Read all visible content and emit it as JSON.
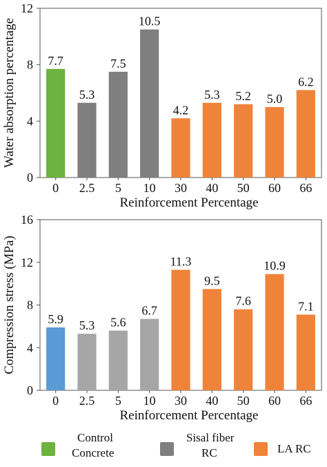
{
  "chart_data": [
    {
      "type": "bar",
      "ylabel": "Water absorption percentage",
      "xlabel": "Reinforcement Percentage",
      "categories": [
        "0",
        "2.5",
        "5",
        "10",
        "30",
        "40",
        "50",
        "60",
        "66"
      ],
      "values": [
        7.7,
        5.3,
        7.5,
        10.5,
        4.2,
        5.3,
        5.2,
        5.0,
        6.2
      ],
      "data_labels": [
        "7.7",
        "5.3",
        "7.5",
        "10.5",
        "4.2",
        "5.3",
        "5.2",
        "5.0",
        "6.2"
      ],
      "bar_colors": [
        "#6db33f",
        "#7f7f7f",
        "#7f7f7f",
        "#7f7f7f",
        "#f0833a",
        "#f0833a",
        "#f0833a",
        "#f0833a",
        "#f0833a"
      ],
      "ylim": [
        0,
        12
      ],
      "yticks": [
        "0",
        "4",
        "8",
        "12"
      ],
      "grid": false
    },
    {
      "type": "bar",
      "ylabel": "Compression stress (MPa)",
      "xlabel": "Reinforcement Percentage",
      "categories": [
        "0",
        "2.5",
        "5",
        "10",
        "30",
        "40",
        "50",
        "60",
        "66"
      ],
      "values": [
        5.9,
        5.3,
        5.6,
        6.7,
        11.3,
        9.5,
        7.6,
        10.9,
        7.1
      ],
      "data_labels": [
        "5.9",
        "5.3",
        "5.6",
        "6.7",
        "11.3",
        "9.5",
        "7.6",
        "10.9",
        "7.1"
      ],
      "bar_colors": [
        "#5b9bd5",
        "#a6a6a6",
        "#a6a6a6",
        "#a6a6a6",
        "#f0833a",
        "#f0833a",
        "#f0833a",
        "#f0833a",
        "#f0833a"
      ],
      "ylim": [
        0,
        16
      ],
      "yticks": [
        "0",
        "4",
        "8",
        "12",
        "16"
      ],
      "grid": false
    }
  ],
  "legend": [
    {
      "label": "Control Concrete",
      "lines": [
        "Control",
        "Concrete"
      ],
      "color": "#6db33f"
    },
    {
      "label": "Sisal fiber RC",
      "lines": [
        "Sisal fiber",
        "RC"
      ],
      "color": "#7f7f7f"
    },
    {
      "label": "LA RC",
      "lines": [
        "LA RC"
      ],
      "color": "#f0833a"
    }
  ]
}
